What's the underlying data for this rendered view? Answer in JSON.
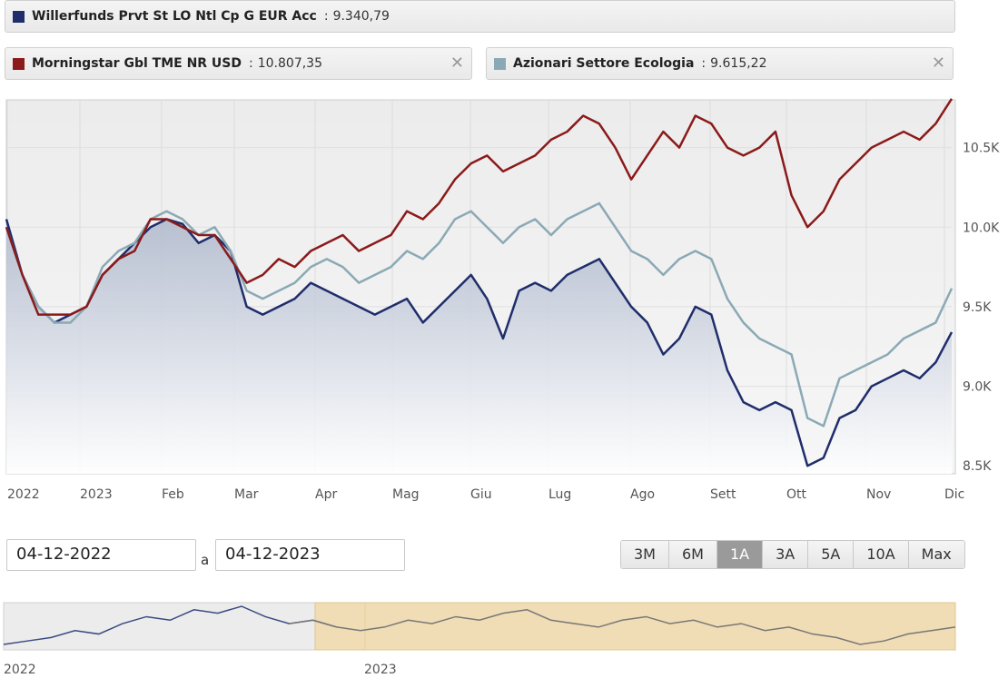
{
  "legend": [
    {
      "name": "Willerfunds Prvt St LO Ntl Cp G EUR Acc",
      "value": "9.340,79",
      "color": "#1f2d6b",
      "closable": false
    },
    {
      "name": "Morningstar Gbl TME NR USD",
      "value": "10.807,35",
      "color": "#8b1a1a",
      "closable": true
    },
    {
      "name": "Azionari Settore Ecologia",
      "value": "9.615,22",
      "color": "#8ba9b5",
      "closable": true
    }
  ],
  "close_glyph": "✕",
  "chart_data": {
    "type": "line",
    "x_labels": [
      "2022",
      "2023",
      "Feb",
      "Mar",
      "Apr",
      "Mag",
      "Giu",
      "Lug",
      "Ago",
      "Sett",
      "Ott",
      "Nov",
      "Dic"
    ],
    "y_ticks": [
      8500,
      9000,
      9500,
      10000,
      10500
    ],
    "y_tick_labels": [
      "8.5K",
      "9.0K",
      "9.5K",
      "10.0K",
      "10.5K"
    ],
    "ylim": [
      8450,
      10800
    ],
    "grid": true,
    "series": [
      {
        "name": "Willerfunds Prvt St LO Ntl Cp G EUR Acc",
        "color": "#1f2d6b",
        "filled": true,
        "values": [
          10050,
          9700,
          9500,
          9400,
          9450,
          9500,
          9700,
          9800,
          9900,
          10000,
          10050,
          10020,
          9900,
          9950,
          9850,
          9500,
          9450,
          9500,
          9550,
          9650,
          9600,
          9550,
          9500,
          9450,
          9500,
          9550,
          9400,
          9500,
          9600,
          9700,
          9550,
          9300,
          9600,
          9650,
          9600,
          9700,
          9750,
          9800,
          9650,
          9500,
          9400,
          9200,
          9300,
          9500,
          9450,
          9100,
          8900,
          8850,
          8900,
          8850,
          8500,
          8550,
          8800,
          8850,
          9000,
          9050,
          9100,
          9050,
          9150,
          9340
        ]
      },
      {
        "name": "Morningstar Gbl TME NR USD",
        "color": "#8b1a1a",
        "filled": false,
        "values": [
          10000,
          9700,
          9450,
          9450,
          9450,
          9500,
          9700,
          9800,
          9850,
          10050,
          10050,
          10000,
          9950,
          9950,
          9800,
          9650,
          9700,
          9800,
          9750,
          9850,
          9900,
          9950,
          9850,
          9900,
          9950,
          10100,
          10050,
          10150,
          10300,
          10400,
          10450,
          10350,
          10400,
          10450,
          10550,
          10600,
          10700,
          10650,
          10500,
          10300,
          10450,
          10600,
          10500,
          10700,
          10650,
          10500,
          10450,
          10500,
          10600,
          10200,
          10000,
          10100,
          10300,
          10400,
          10500,
          10550,
          10600,
          10550,
          10650,
          10807
        ]
      },
      {
        "name": "Azionari Settore Ecologia",
        "color": "#8ba9b5",
        "filled": false,
        "values": [
          10000,
          9700,
          9500,
          9400,
          9400,
          9500,
          9750,
          9850,
          9900,
          10050,
          10100,
          10050,
          9950,
          10000,
          9850,
          9600,
          9550,
          9600,
          9650,
          9750,
          9800,
          9750,
          9650,
          9700,
          9750,
          9850,
          9800,
          9900,
          10050,
          10100,
          10000,
          9900,
          10000,
          10050,
          9950,
          10050,
          10100,
          10150,
          10000,
          9850,
          9800,
          9700,
          9800,
          9850,
          9800,
          9550,
          9400,
          9300,
          9250,
          9200,
          8800,
          8750,
          9050,
          9100,
          9150,
          9200,
          9300,
          9350,
          9400,
          9615
        ]
      }
    ]
  },
  "date_range": {
    "from": "04-12-2022",
    "separator": "a",
    "to": "04-12-2023"
  },
  "range_buttons": [
    {
      "label": "3M",
      "active": false
    },
    {
      "label": "6M",
      "active": false
    },
    {
      "label": "1A",
      "active": true
    },
    {
      "label": "3A",
      "active": false
    },
    {
      "label": "5A",
      "active": false
    },
    {
      "label": "10A",
      "active": false
    },
    {
      "label": "Max",
      "active": false
    }
  ],
  "navigator": {
    "labels": [
      "2022",
      "2023"
    ],
    "values": [
      9300,
      9350,
      9400,
      9500,
      9450,
      9600,
      9700,
      9650,
      9800,
      9750,
      9850,
      9700,
      9600,
      9650,
      9550,
      9500,
      9550,
      9650,
      9600,
      9700,
      9650,
      9750,
      9800,
      9650,
      9600,
      9550,
      9650,
      9700,
      9600,
      9650,
      9550,
      9600,
      9500,
      9550,
      9450,
      9400,
      9300,
      9350,
      9450,
      9500,
      9550
    ]
  }
}
